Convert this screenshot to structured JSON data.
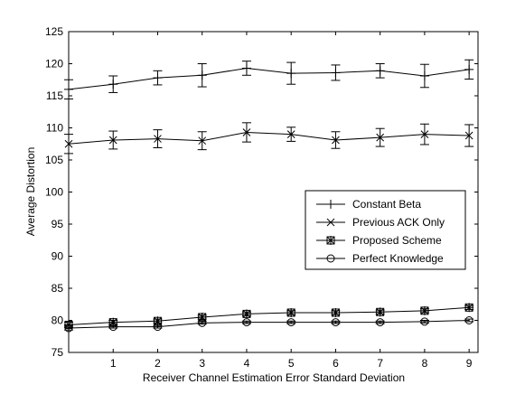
{
  "chart_data": {
    "type": "line",
    "title": "",
    "xlabel": "Receiver Channel Estimation Error Standard Deviation",
    "ylabel": "Average Distortion",
    "xlim": [
      0,
      9.2
    ],
    "ylim": [
      75,
      125
    ],
    "x_ticks": [
      1,
      2,
      3,
      4,
      5,
      6,
      7,
      8,
      9
    ],
    "y_ticks": [
      75,
      80,
      85,
      90,
      95,
      100,
      105,
      110,
      115,
      120,
      125
    ],
    "grid": false,
    "legend_position": "right",
    "x": [
      0,
      1,
      2,
      3,
      4,
      5,
      6,
      7,
      8,
      9
    ],
    "series": [
      {
        "name": "Constant Beta",
        "marker": "plus",
        "values": [
          116.0,
          116.8,
          117.8,
          118.2,
          119.3,
          118.5,
          118.6,
          118.9,
          118.1,
          119.1
        ],
        "errors": [
          1.5,
          1.3,
          1.1,
          1.8,
          1.1,
          1.7,
          1.2,
          1.1,
          1.8,
          1.5
        ]
      },
      {
        "name": "Previous ACK Only",
        "marker": "x",
        "values": [
          107.5,
          108.1,
          108.3,
          108.0,
          109.3,
          109.0,
          108.1,
          108.5,
          109.0,
          108.8
        ],
        "errors": [
          1.5,
          1.4,
          1.4,
          1.4,
          1.5,
          1.1,
          1.3,
          1.4,
          1.6,
          1.7
        ]
      },
      {
        "name": "Proposed Scheme",
        "marker": "star",
        "values": [
          79.3,
          79.7,
          79.9,
          80.5,
          81.0,
          81.2,
          81.2,
          81.3,
          81.5,
          82.0
        ],
        "errors": [
          0.4,
          0.3,
          0.3,
          0.3,
          0.3,
          0.3,
          0.3,
          0.3,
          0.3,
          0.3
        ]
      },
      {
        "name": "Perfect Knowledge",
        "marker": "circle",
        "values": [
          78.8,
          79.0,
          79.0,
          79.6,
          79.7,
          79.7,
          79.7,
          79.7,
          79.8,
          80.0
        ],
        "errors": [
          0.3,
          0.2,
          0.2,
          0.2,
          0.2,
          0.2,
          0.2,
          0.2,
          0.2,
          0.2
        ]
      }
    ]
  }
}
